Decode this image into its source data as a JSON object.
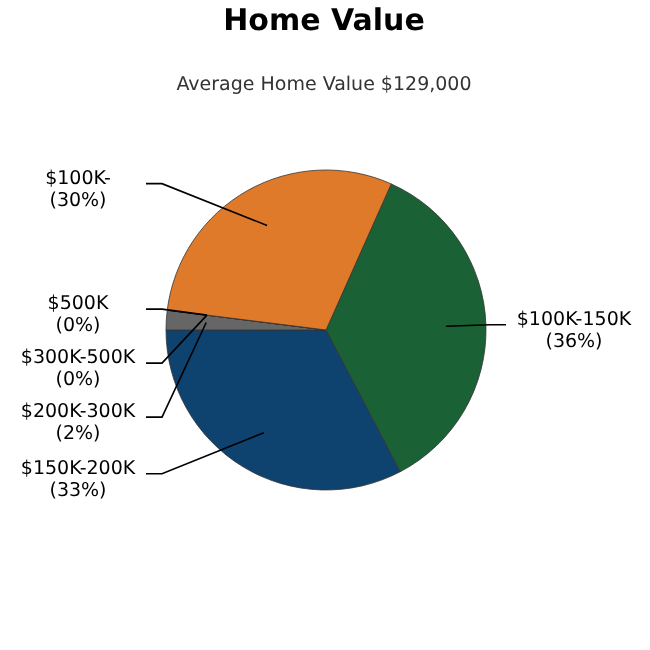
{
  "chart_data": {
    "type": "pie",
    "title": "Home Value",
    "subtitle": "Average Home Value  $129,000",
    "categories": [
      "$100K-150K",
      "$150K-200K",
      "$200K-300K",
      "$500K",
      "$300K-500K",
      "$100K-"
    ],
    "values": [
      36,
      33,
      2,
      0,
      0,
      30
    ],
    "value_labels": [
      "(36%)",
      "(33%)",
      "(2%)",
      "(0%)",
      "(0%)",
      "(30%)"
    ],
    "colors": [
      "#1a6136",
      "#0e426f",
      "#666666",
      "#555555",
      "#777777",
      "#e07a2b"
    ]
  }
}
